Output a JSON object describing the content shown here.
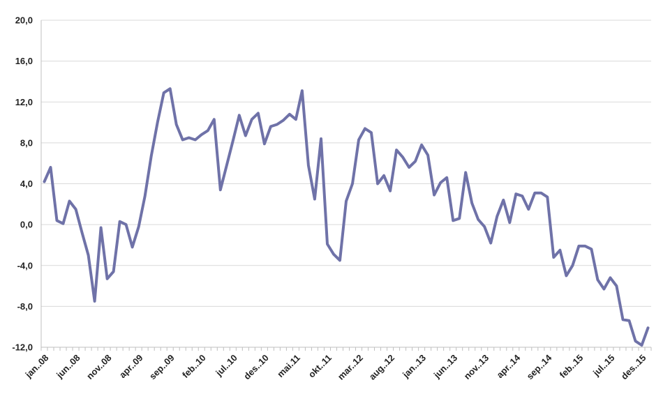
{
  "chart_data": {
    "type": "line",
    "title": "",
    "xlabel": "",
    "ylabel": "",
    "ylim": [
      -12,
      20
    ],
    "yticks": [
      "20,0",
      "16,0",
      "12,0",
      "8,0",
      "4,0",
      "0,0",
      "-4,0",
      "-8,0",
      "-12,0"
    ],
    "ytick_values": [
      20,
      16,
      12,
      8,
      4,
      0,
      -4,
      -8,
      -12
    ],
    "xtick_labels": [
      "jan..08",
      "jun..08",
      "nov..08",
      "apr..09",
      "sep..09",
      "feb..10",
      "jul..10",
      "des..10",
      "mai.11",
      "okt..11",
      "mar..12",
      "aug..12",
      "jan..13",
      "jun..13",
      "nov..13",
      "apr..14",
      "sep..14",
      "feb..15",
      "jul..15",
      "des..15"
    ],
    "grid": true,
    "colors": {
      "line": "#6f72a8",
      "grid": "#d9d9d9",
      "axis": "#bfbfbf"
    },
    "series": [
      {
        "values": [
          4.2,
          5.6,
          0.4,
          0.1,
          2.3,
          1.5,
          -0.8,
          -3.0,
          -7.5,
          -0.3,
          -5.3,
          -4.6,
          0.3,
          0.0,
          -2.2,
          -0.2,
          2.8,
          6.7,
          10.0,
          12.9,
          13.3,
          9.8,
          8.3,
          8.5,
          8.3,
          8.8,
          9.2,
          10.3,
          3.4,
          5.8,
          8.2,
          10.7,
          8.7,
          10.3,
          10.9,
          7.9,
          9.6,
          9.8,
          10.2,
          10.8,
          10.3,
          13.1,
          5.8,
          2.5,
          8.4,
          -1.9,
          -2.9,
          -3.5,
          2.3,
          4.0,
          8.3,
          9.4,
          9.0,
          4.0,
          4.8,
          3.3,
          7.3,
          6.6,
          5.6,
          6.2,
          7.8,
          6.8,
          2.9,
          4.1,
          4.6,
          0.4,
          0.6,
          5.1,
          2.1,
          0.5,
          -0.2,
          -1.8,
          0.8,
          2.4,
          0.2,
          3.0,
          2.8,
          1.5,
          3.1,
          3.1,
          2.7,
          -3.2,
          -2.5,
          -5.0,
          -4.0,
          -2.1,
          -2.1,
          -2.4,
          -5.4,
          -6.3,
          -5.2,
          -6.0,
          -9.3,
          -9.4,
          -11.4,
          -11.8,
          -10.1
        ]
      }
    ]
  }
}
